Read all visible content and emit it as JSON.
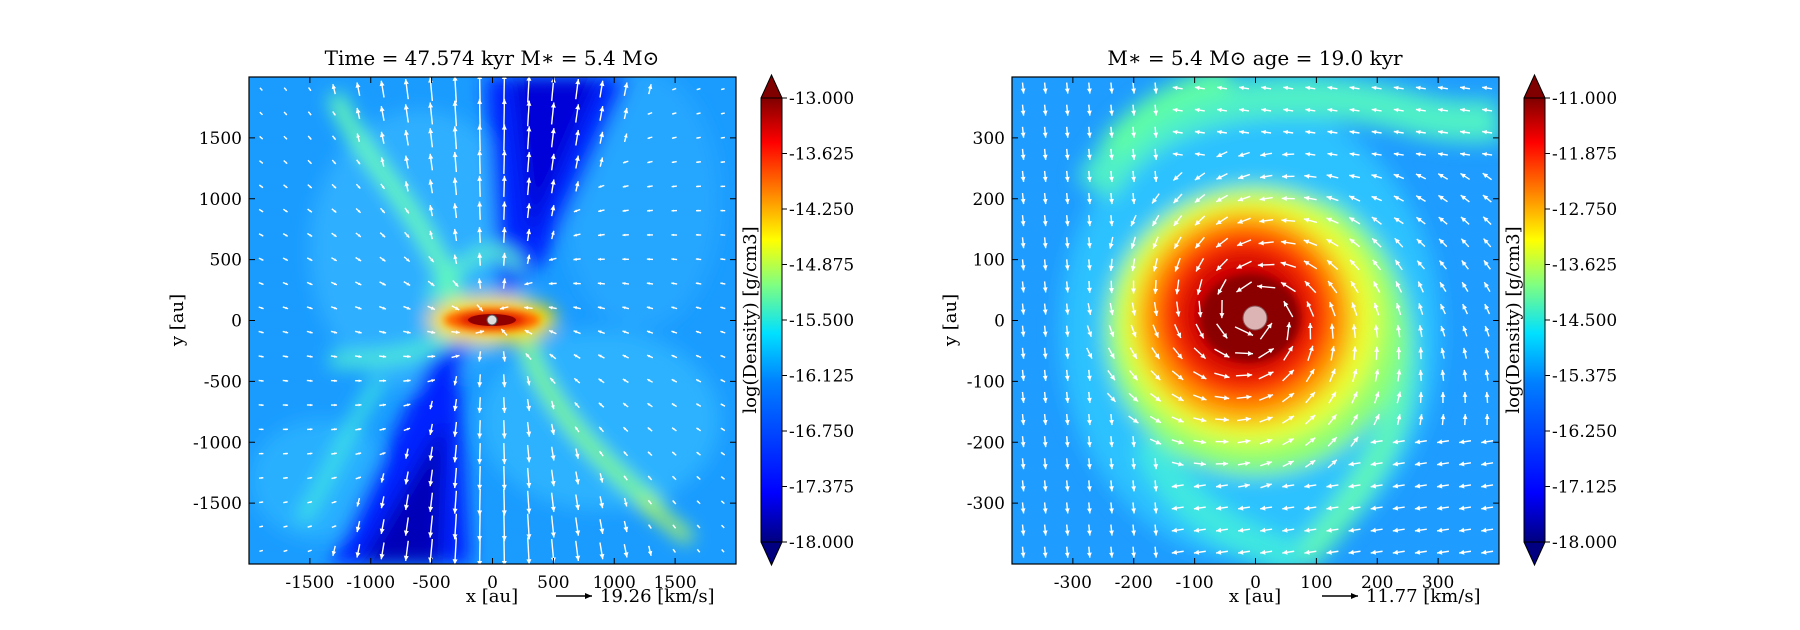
{
  "chart_data": [
    {
      "type": "heatmap",
      "title": "Time = 47.574 kyr    M∗ = 5.4 M⊙",
      "xlabel": "x [au]",
      "ylabel": "y [au]",
      "xlim": [
        -2000,
        2000
      ],
      "ylim": [
        -2000,
        2000
      ],
      "xticks": [
        -1500,
        -1000,
        -500,
        0,
        500,
        1000,
        1500
      ],
      "yticks": [
        -1500,
        -1000,
        -500,
        0,
        500,
        1000,
        1500
      ],
      "colorbar": {
        "label": "log(Density) [g/cm3]",
        "range": [
          -18.0,
          -13.0
        ],
        "ticks": [
          "-13.000",
          "-13.625",
          "-14.250",
          "-14.875",
          "-15.500",
          "-16.125",
          "-16.750",
          "-17.375",
          "-18.000"
        ],
        "colormap": "jet"
      },
      "vector_key": {
        "value": 19.26,
        "label": "19.26 [km/s]"
      },
      "features": {
        "background_level": -16.3,
        "outflow_direction": "vertical (north and south cavities)",
        "disk_orientation": "horizontal",
        "sink_particle": [
          0,
          0
        ]
      }
    },
    {
      "type": "heatmap",
      "title": "M∗ = 5.4 M⊙        age = 19.0 kyr",
      "xlabel": "x [au]",
      "ylabel": "y [au]",
      "xlim": [
        -400,
        400
      ],
      "ylim": [
        -400,
        400
      ],
      "xticks": [
        -300,
        -200,
        -100,
        0,
        100,
        200,
        300
      ],
      "yticks": [
        -300,
        -200,
        -100,
        0,
        100,
        200,
        300
      ],
      "colorbar": {
        "label": "log(Density) [g/cm3]",
        "range": [
          -18.0,
          -11.0
        ],
        "ticks": [
          "-11.000",
          "-11.875",
          "-12.750",
          "-13.625",
          "-14.500",
          "-15.375",
          "-16.250",
          "-17.125",
          "-18.000"
        ],
        "colormap": "jet"
      },
      "vector_key": {
        "value": 11.77,
        "label": "11.77 [km/s]"
      },
      "features": {
        "background_level": -15.9,
        "core_level": -11.1,
        "spiral_arms": 2,
        "sink_particle": [
          0,
          0
        ]
      }
    }
  ],
  "colors": {
    "jet_stops": [
      "#000080",
      "#0000ff",
      "#0080ff",
      "#00ffff",
      "#80ff80",
      "#ffff00",
      "#ff8000",
      "#ff0000",
      "#800000"
    ],
    "arrow": "#ffffff",
    "sink_left": "#dddddd",
    "sink_right": "#dcb4b4"
  }
}
